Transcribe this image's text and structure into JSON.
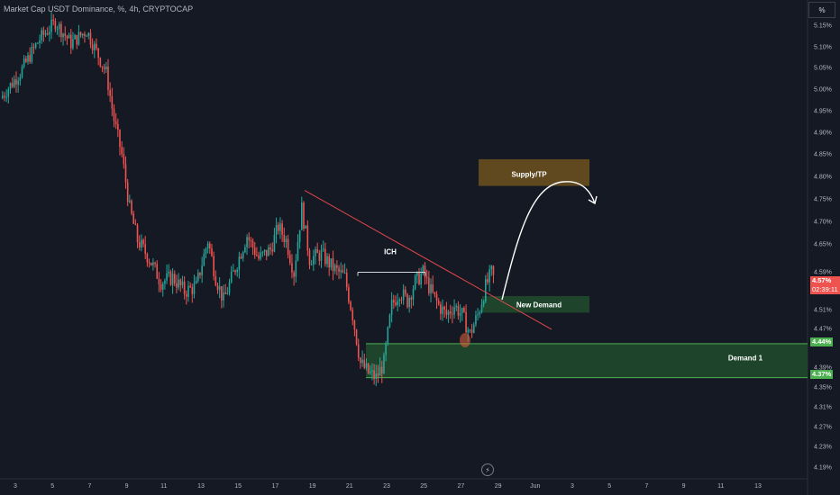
{
  "header": {
    "title": "Market Cap USDT Dominance, %, 4h, CRYPTOCAP",
    "scale_label": "%"
  },
  "price_axis": {
    "ticks": [
      "5.15%",
      "5.10%",
      "5.05%",
      "5.00%",
      "4.95%",
      "4.90%",
      "4.85%",
      "4.80%",
      "4.75%",
      "4.70%",
      "4.65%",
      "4.59%",
      "4.51%",
      "4.47%",
      "4.39%",
      "4.35%",
      "4.31%",
      "4.27%",
      "4.23%",
      "4.19%"
    ],
    "current_price": "4.57%",
    "countdown": "02:39:11",
    "demand_top": "4.44%",
    "demand_bottom": "4.37%"
  },
  "time_axis": {
    "ticks": [
      "3",
      "5",
      "7",
      "9",
      "11",
      "13",
      "15",
      "17",
      "19",
      "21",
      "23",
      "25",
      "27",
      "29",
      "Jun",
      "3",
      "5",
      "7",
      "9",
      "11",
      "13"
    ]
  },
  "annotations": {
    "supply": "Supply/TP",
    "new_demand": "New Demand",
    "demand1": "Demand 1",
    "ich": "ICH"
  },
  "colors": {
    "background": "#151924",
    "up": "#26a69a",
    "down": "#ef5350",
    "trendline": "#e0474c",
    "supply_zone": "#7a5a1e",
    "demand_zone": "#1f4a2c",
    "demand_border": "#4caf50",
    "tag_green": "#4caf50",
    "tag_red": "#ef5350"
  },
  "chart_data": {
    "type": "candlestick",
    "title": "Market Cap USDT Dominance, %, 4h, CRYPTOCAP",
    "ylabel": "%",
    "y_scale": "log",
    "ylim": [
      4.17,
      5.19
    ],
    "x_dates": [
      "3",
      "5",
      "7",
      "9",
      "11",
      "13",
      "15",
      "17",
      "19",
      "21",
      "23",
      "25",
      "27",
      "29",
      "Jun",
      "3",
      "5",
      "7",
      "9",
      "11",
      "13"
    ],
    "price_anchors": [
      [
        0,
        4.98
      ],
      [
        10,
        5.04
      ],
      [
        20,
        5.12
      ],
      [
        28,
        5.16
      ],
      [
        36,
        5.11
      ],
      [
        44,
        5.14
      ],
      [
        50,
        5.08
      ],
      [
        54,
        5.04
      ],
      [
        58,
        4.93
      ],
      [
        62,
        4.85
      ],
      [
        66,
        4.73
      ],
      [
        70,
        4.66
      ],
      [
        76,
        4.62
      ],
      [
        82,
        4.57
      ],
      [
        88,
        4.58
      ],
      [
        94,
        4.55
      ],
      [
        100,
        4.56
      ],
      [
        106,
        4.66
      ],
      [
        110,
        4.58
      ],
      [
        114,
        4.53
      ],
      [
        120,
        4.6
      ],
      [
        126,
        4.67
      ],
      [
        132,
        4.62
      ],
      [
        138,
        4.64
      ],
      [
        142,
        4.69
      ],
      [
        146,
        4.66
      ],
      [
        150,
        4.59
      ],
      [
        154,
        4.73
      ],
      [
        158,
        4.62
      ],
      [
        164,
        4.63
      ],
      [
        170,
        4.6
      ],
      [
        176,
        4.58
      ],
      [
        180,
        4.5
      ],
      [
        184,
        4.4
      ],
      [
        188,
        4.38
      ],
      [
        192,
        4.37
      ],
      [
        196,
        4.4
      ],
      [
        200,
        4.52
      ],
      [
        204,
        4.55
      ],
      [
        208,
        4.53
      ],
      [
        212,
        4.57
      ],
      [
        216,
        4.59
      ],
      [
        220,
        4.55
      ],
      [
        224,
        4.52
      ],
      [
        228,
        4.5
      ],
      [
        232,
        4.52
      ],
      [
        236,
        4.5
      ],
      [
        240,
        4.46
      ],
      [
        244,
        4.5
      ],
      [
        248,
        4.56
      ],
      [
        251,
        4.59
      ]
    ],
    "current_price": 4.57,
    "zones": [
      {
        "name": "Supply/TP",
        "from": 4.84,
        "to": 4.78
      },
      {
        "name": "New Demand",
        "from": 4.54,
        "to": 4.505
      },
      {
        "name": "Demand 1",
        "from": 4.44,
        "to": 4.37
      }
    ],
    "trendline": {
      "from": 4.77,
      "to": 4.47
    },
    "ich_level": 4.59
  }
}
